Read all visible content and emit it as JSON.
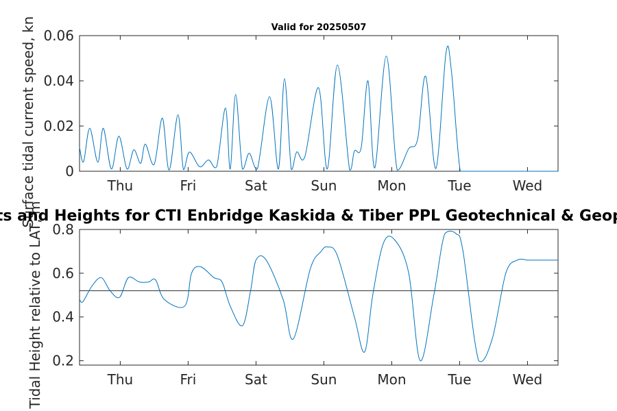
{
  "chart_data": [
    {
      "type": "line",
      "title": "Valid for 20250507",
      "ylabel": "Surface tidal current speed, kn",
      "xlabel": "",
      "ylim": [
        0,
        0.06
      ],
      "yticks": [
        "0",
        "0.02",
        "0.04",
        "0.06"
      ],
      "xticks": [
        "Thu",
        "Fri",
        "Sat",
        "Sun",
        "Mon",
        "Tue",
        "Wed"
      ],
      "xlim_days": [
        -0.6,
        6.45
      ],
      "color": "#0072BD",
      "series": [
        {
          "x": [
            -0.6,
            -0.54,
            -0.45,
            -0.33,
            -0.25,
            -0.13,
            -0.02,
            0.1,
            0.2,
            0.3,
            0.37,
            0.5,
            0.62,
            0.72,
            0.85,
            0.93,
            1.02,
            1.17,
            1.3,
            1.42,
            1.55,
            1.62,
            1.7,
            1.8,
            1.9,
            2.02,
            2.2,
            2.33,
            2.42,
            2.52,
            2.6,
            2.72,
            2.92,
            3.05,
            3.2,
            3.38,
            3.45,
            3.55,
            3.65,
            3.75,
            3.92,
            4.08,
            4.25,
            4.38,
            4.5,
            4.65,
            4.8,
            4.88,
            5.01,
            5.15,
            5.32,
            5.45,
            5.53,
            5.62,
            5.72,
            5.83,
            6.0,
            6.14,
            6.3,
            6.37,
            6.45
          ],
          "y": [
            0.0105,
            0.0042,
            0.019,
            0.004,
            0.019,
            0.001,
            0.0155,
            0.001,
            0.0095,
            0.0035,
            0.012,
            0.003,
            0.0235,
            0.0005,
            0.025,
            0.0008,
            0.0085,
            0.002,
            0.005,
            0.002,
            0.028,
            0.001,
            0.034,
            0.001,
            0.008,
            0.001,
            0.033,
            0.001,
            0.041,
            0.0008,
            0.0085,
            0.0065,
            0.037,
            0.001,
            0.047,
            0.0005,
            0.009,
            0.0105,
            0.04,
            0.0015,
            0.051,
            0.0005,
            0.01,
            0.014,
            0.042,
            0.0012,
            0.0525,
            0.044,
            0.0,
            0.0,
            0.0,
            0.0,
            0.0,
            0.0,
            0.0,
            0.0,
            0.0,
            0.0,
            0.0,
            0.0,
            0.0
          ]
        }
      ]
    },
    {
      "type": "line",
      "title": "Tidal Currents and Heights for CTI Enbridge  Kaskida & Tiber PPL Geotechnical & Geophysical Survey",
      "ylabel": "Tidal Height relative to LAT, m",
      "xlabel": "",
      "ylim": [
        0.18,
        0.8
      ],
      "yticks": [
        "0.2",
        "0.4",
        "0.6",
        "0.8"
      ],
      "xticks": [
        "Thu",
        "Fri",
        "Sat",
        "Sun",
        "Mon",
        "Tue",
        "Wed"
      ],
      "xlim_days": [
        -0.6,
        6.45
      ],
      "color": "#0072BD",
      "reference_level": 0.52,
      "series": [
        {
          "x": [
            -0.6,
            -0.55,
            -0.42,
            -0.28,
            -0.15,
            -0.01,
            0.12,
            0.28,
            0.42,
            0.52,
            0.65,
            0.95,
            1.05,
            1.18,
            1.38,
            1.5,
            1.62,
            1.8,
            1.92,
            2.0,
            2.15,
            2.4,
            2.55,
            2.8,
            2.96,
            3.05,
            3.2,
            3.45,
            3.6,
            3.72,
            3.88,
            4.05,
            4.25,
            4.42,
            4.62,
            4.78,
            4.95,
            5.05,
            5.28,
            5.48,
            5.68,
            5.85,
            6.0,
            6.08,
            6.3,
            6.45
          ],
          "y": [
            0.48,
            0.47,
            0.54,
            0.58,
            0.52,
            0.49,
            0.58,
            0.56,
            0.56,
            0.57,
            0.48,
            0.45,
            0.6,
            0.63,
            0.58,
            0.56,
            0.45,
            0.36,
            0.52,
            0.66,
            0.66,
            0.48,
            0.3,
            0.62,
            0.7,
            0.72,
            0.68,
            0.4,
            0.24,
            0.5,
            0.74,
            0.75,
            0.6,
            0.2,
            0.5,
            0.78,
            0.78,
            0.7,
            0.2,
            0.3,
            0.6,
            0.66,
            0.66,
            0.66,
            0.66,
            0.66
          ]
        }
      ]
    }
  ]
}
